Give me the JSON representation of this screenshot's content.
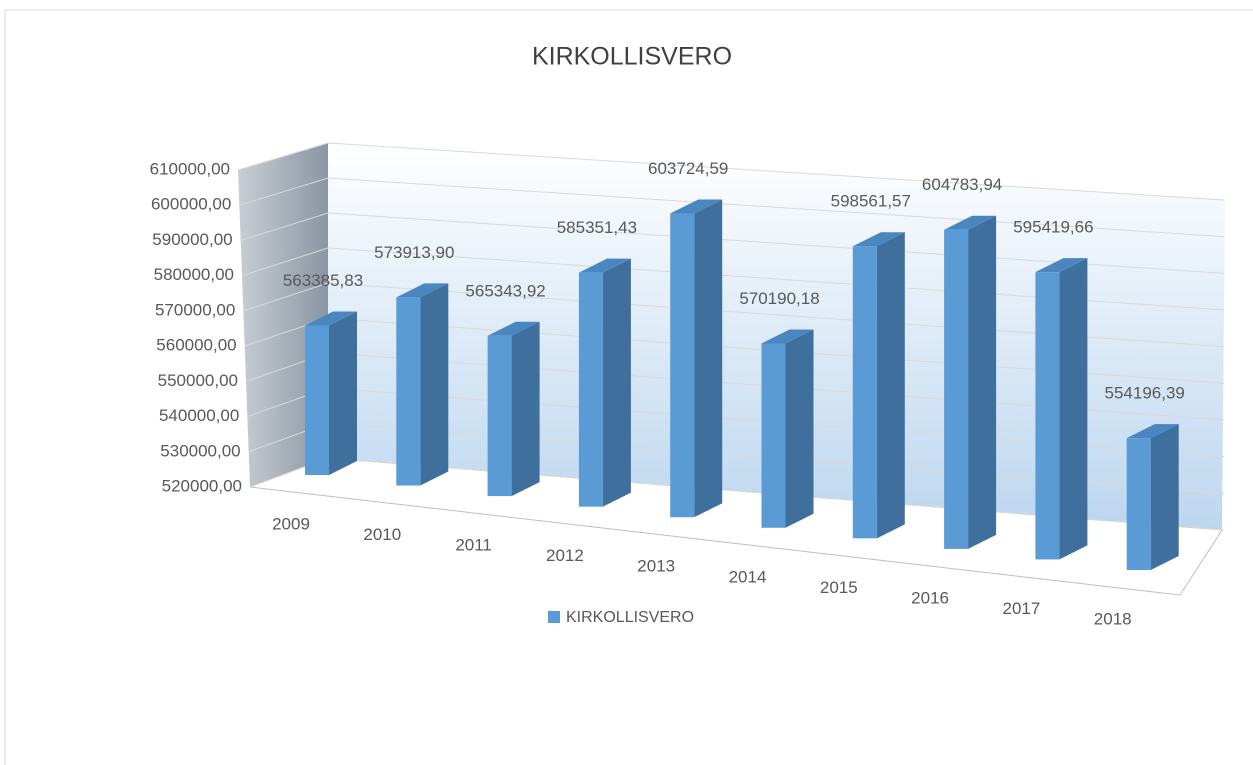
{
  "chart_data": {
    "type": "bar",
    "title": "KIRKOLLISVERO",
    "categories": [
      "2009",
      "2010",
      "2011",
      "2012",
      "2013",
      "2014",
      "2015",
      "2016",
      "2017",
      "2018"
    ],
    "series": [
      {
        "name": "KIRKOLLISVERO",
        "color": "#5b9bd5",
        "values": [
          563385.83,
          573913.9,
          565343.92,
          585351.43,
          603724.59,
          570190.18,
          598561.57,
          604783.94,
          595419.66,
          554196.39
        ],
        "value_labels": [
          "563385,83",
          "573913,90",
          "565343,92",
          "585351,43",
          "603724,59",
          "570190,18",
          "598561,57",
          "604783,94",
          "595419,66",
          "554196,39"
        ]
      }
    ],
    "ylim": [
      520000,
      610000
    ],
    "yticks": [
      {
        "value": 520000,
        "label": "520000,00"
      },
      {
        "value": 530000,
        "label": "530000,00"
      },
      {
        "value": 540000,
        "label": "540000,00"
      },
      {
        "value": 550000,
        "label": "550000,00"
      },
      {
        "value": 560000,
        "label": "560000,00"
      },
      {
        "value": 570000,
        "label": "570000,00"
      },
      {
        "value": 580000,
        "label": "580000,00"
      },
      {
        "value": 590000,
        "label": "590000,00"
      },
      {
        "value": 600000,
        "label": "600000,00"
      },
      {
        "value": 610000,
        "label": "610000,00"
      }
    ],
    "grid": true,
    "legend": "bottom"
  }
}
